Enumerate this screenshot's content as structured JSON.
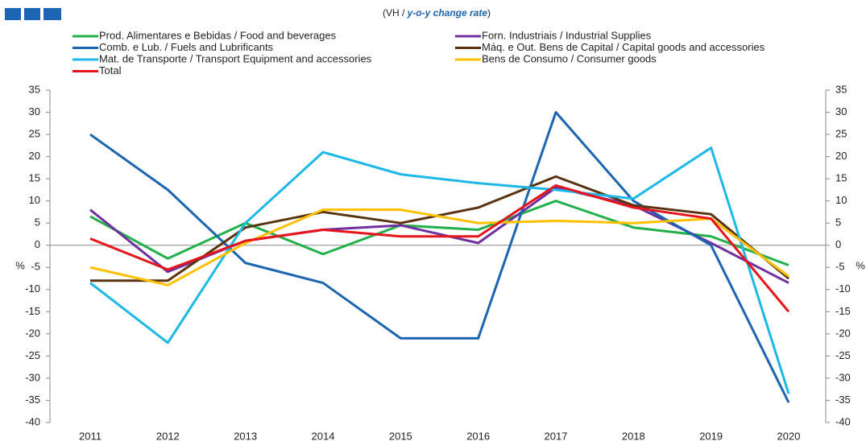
{
  "chart_data": {
    "type": "line",
    "subtitle": [
      "(VH / ",
      "y-o-y change rate",
      ")"
    ],
    "ylabel": "%",
    "y2label": "%",
    "categories": [
      "2011",
      "2012",
      "2013",
      "2014",
      "2015",
      "2016",
      "2017",
      "2018",
      "2019",
      "2020"
    ],
    "series": [
      {
        "name": "Prod. Alimentares e Bebidas / Food and beverages",
        "color": "#22b04b",
        "values": [
          6.5,
          -3,
          5,
          -2,
          4.5,
          3.5,
          10,
          4,
          2,
          -4.5
        ]
      },
      {
        "name": "Forn. Industriais / Industrial Supplies",
        "color": "#7030a0",
        "values": [
          8,
          -6,
          1,
          3.5,
          4.5,
          0.5,
          13,
          9,
          0.5,
          -8.5
        ]
      },
      {
        "name": "Comb. e Lub. /  Fuels and Lubrificants",
        "color": "#1b65b2",
        "values": [
          25,
          12.5,
          -4,
          -8.5,
          -21,
          -21,
          30,
          10,
          0,
          -35.5
        ]
      },
      {
        "name": "Máq. e Out. Bens de Capital / Capital goods and accessories",
        "color": "#5a3310",
        "values": [
          -8,
          -8,
          4,
          7.5,
          5,
          8.5,
          15.5,
          9,
          7,
          -7.5
        ]
      },
      {
        "name": "Mat. de Transporte / Transport Equipment and accessories",
        "color": "#1cb8e8",
        "values": [
          -8.5,
          -22,
          5,
          21,
          16,
          14,
          12.5,
          10.5,
          22,
          -33.5
        ]
      },
      {
        "name": "Bens de Consumo / Consumer goods",
        "color": "#ffc000",
        "values": [
          -5,
          -9,
          0.5,
          8,
          8,
          5,
          5.5,
          5,
          6,
          -7
        ]
      },
      {
        "name": "Total",
        "color": "#e6141b",
        "values": [
          1.5,
          -5.5,
          1,
          3.5,
          2,
          2,
          13.5,
          8.5,
          6,
          -15
        ]
      }
    ],
    "ylim": [
      -40,
      35
    ],
    "yticks": [
      -40,
      -35,
      -30,
      -25,
      -20,
      -15,
      -10,
      -5,
      0,
      5,
      10,
      15,
      20,
      25,
      30,
      35
    ],
    "y2lim": [
      -40,
      35
    ],
    "y2ticks": [
      -40,
      -35,
      -30,
      -25,
      -20,
      -15,
      -10,
      -5,
      0,
      5,
      10,
      15,
      20,
      25,
      30,
      35
    ]
  }
}
